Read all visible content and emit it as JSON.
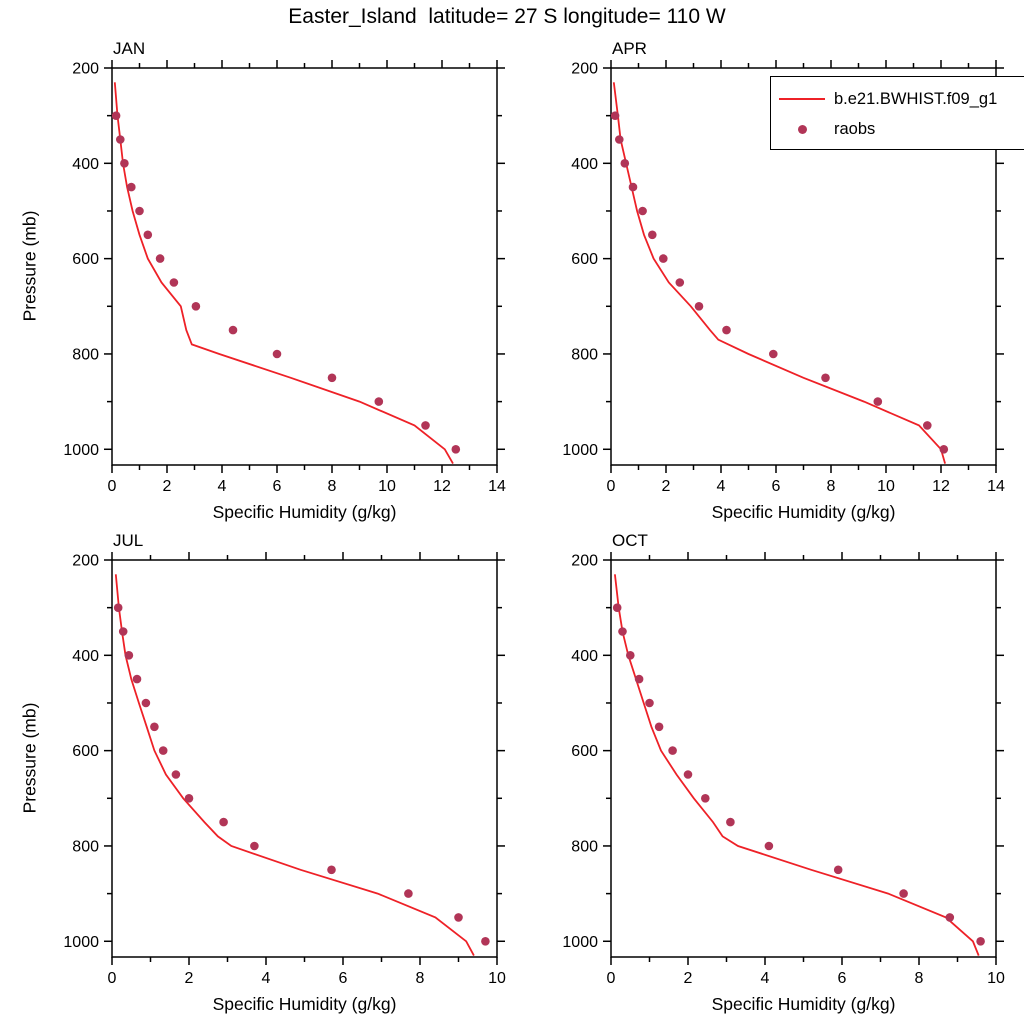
{
  "title": "Easter_Island  latitude= 27 S longitude= 110 W",
  "legend": {
    "line_label": "b.e21.BWHIST.f09_g1",
    "dot_label": "raobs",
    "position": "top-right-of-APR-panel"
  },
  "colors": {
    "line": "#ee2127",
    "dot": "#b13557",
    "axis": "#000000",
    "background": "#ffffff"
  },
  "chart_data": [
    {
      "type": "line",
      "panel": "JAN",
      "xlabel": "Specific Humidity (g/kg)",
      "ylabel": "Pressure (mb)",
      "xlim": [
        0,
        14
      ],
      "ylim": [
        200,
        1033
      ],
      "x_ticks": [
        0,
        2,
        4,
        6,
        8,
        10,
        12,
        14
      ],
      "y_ticks": [
        200,
        400,
        600,
        800,
        1000
      ],
      "grid": false,
      "y_axis_inverted": true,
      "series": [
        {
          "name": "b.e21.BWHIST.f09_g1",
          "style": "line",
          "pressure": [
            230,
            300,
            350,
            400,
            450,
            500,
            550,
            600,
            650,
            700,
            750,
            780,
            800,
            850,
            900,
            950,
            1000,
            1030
          ],
          "q": [
            0.1,
            0.2,
            0.3,
            0.4,
            0.55,
            0.75,
            1.0,
            1.3,
            1.8,
            2.5,
            2.7,
            2.9,
            3.9,
            6.5,
            9.0,
            11.0,
            12.1,
            12.4
          ]
        },
        {
          "name": "raobs",
          "style": "dots",
          "pressure": [
            300,
            350,
            400,
            450,
            500,
            550,
            600,
            650,
            700,
            750,
            800,
            850,
            900,
            950,
            1000
          ],
          "q": [
            0.15,
            0.3,
            0.45,
            0.7,
            1.0,
            1.3,
            1.75,
            2.25,
            3.05,
            4.4,
            6.0,
            8.0,
            9.7,
            11.4,
            12.5
          ]
        }
      ]
    },
    {
      "type": "line",
      "panel": "APR",
      "xlabel": "Specific Humidity (g/kg)",
      "ylabel": "Pressure (mb)",
      "xlim": [
        0,
        14
      ],
      "ylim": [
        200,
        1033
      ],
      "x_ticks": [
        0,
        2,
        4,
        6,
        8,
        10,
        12,
        14
      ],
      "y_ticks": [
        200,
        400,
        600,
        800,
        1000
      ],
      "grid": false,
      "y_axis_inverted": true,
      "series": [
        {
          "name": "b.e21.BWHIST.f09_g1",
          "style": "line",
          "pressure": [
            230,
            300,
            350,
            400,
            450,
            500,
            550,
            600,
            650,
            700,
            750,
            770,
            800,
            850,
            900,
            950,
            1000,
            1030
          ],
          "q": [
            0.1,
            0.25,
            0.35,
            0.55,
            0.75,
            0.95,
            1.2,
            1.55,
            2.1,
            2.9,
            3.6,
            3.9,
            5.0,
            7.0,
            9.2,
            11.2,
            12.0,
            12.15
          ]
        },
        {
          "name": "raobs",
          "style": "dots",
          "pressure": [
            300,
            350,
            400,
            450,
            500,
            550,
            600,
            650,
            700,
            750,
            800,
            850,
            900,
            950,
            1000
          ],
          "q": [
            0.15,
            0.3,
            0.5,
            0.8,
            1.15,
            1.5,
            1.9,
            2.5,
            3.2,
            4.2,
            5.9,
            7.8,
            9.7,
            11.5,
            12.1
          ]
        }
      ]
    },
    {
      "type": "line",
      "panel": "JUL",
      "xlabel": "Specific Humidity (g/kg)",
      "ylabel": "Pressure (mb)",
      "xlim": [
        0,
        10
      ],
      "ylim": [
        200,
        1033
      ],
      "x_ticks": [
        0,
        2,
        4,
        6,
        8,
        10
      ],
      "y_ticks": [
        200,
        400,
        600,
        800,
        1000
      ],
      "grid": false,
      "y_axis_inverted": true,
      "series": [
        {
          "name": "b.e21.BWHIST.f09_g1",
          "style": "line",
          "pressure": [
            230,
            300,
            350,
            400,
            450,
            500,
            550,
            600,
            650,
            700,
            750,
            780,
            800,
            850,
            900,
            950,
            1000,
            1030
          ],
          "q": [
            0.1,
            0.18,
            0.26,
            0.35,
            0.5,
            0.7,
            0.9,
            1.1,
            1.4,
            1.85,
            2.4,
            2.75,
            3.1,
            4.9,
            6.9,
            8.4,
            9.2,
            9.4
          ]
        },
        {
          "name": "raobs",
          "style": "dots",
          "pressure": [
            300,
            350,
            400,
            450,
            500,
            550,
            600,
            650,
            700,
            750,
            800,
            850,
            900,
            950,
            1000
          ],
          "q": [
            0.16,
            0.29,
            0.44,
            0.65,
            0.88,
            1.1,
            1.33,
            1.66,
            2.0,
            2.9,
            3.7,
            5.7,
            7.7,
            9.0,
            9.7
          ]
        }
      ]
    },
    {
      "type": "line",
      "panel": "OCT",
      "xlabel": "Specific Humidity (g/kg)",
      "ylabel": "Pressure (mb)",
      "xlim": [
        0,
        10
      ],
      "ylim": [
        200,
        1033
      ],
      "x_ticks": [
        0,
        2,
        4,
        6,
        8,
        10
      ],
      "y_ticks": [
        200,
        400,
        600,
        800,
        1000
      ],
      "grid": false,
      "y_axis_inverted": true,
      "series": [
        {
          "name": "b.e21.BWHIST.f09_g1",
          "style": "line",
          "pressure": [
            230,
            300,
            350,
            400,
            450,
            500,
            550,
            600,
            650,
            700,
            750,
            780,
            800,
            850,
            900,
            950,
            1000,
            1030
          ],
          "q": [
            0.1,
            0.2,
            0.3,
            0.45,
            0.65,
            0.85,
            1.05,
            1.3,
            1.7,
            2.15,
            2.65,
            2.9,
            3.3,
            5.2,
            7.2,
            8.7,
            9.4,
            9.55
          ]
        },
        {
          "name": "raobs",
          "style": "dots",
          "pressure": [
            300,
            350,
            400,
            450,
            500,
            550,
            600,
            650,
            700,
            750,
            800,
            850,
            900,
            950,
            1000
          ],
          "q": [
            0.16,
            0.3,
            0.5,
            0.73,
            1.0,
            1.25,
            1.6,
            2.0,
            2.45,
            3.1,
            4.1,
            5.9,
            7.6,
            8.8,
            9.6
          ]
        }
      ]
    }
  ]
}
